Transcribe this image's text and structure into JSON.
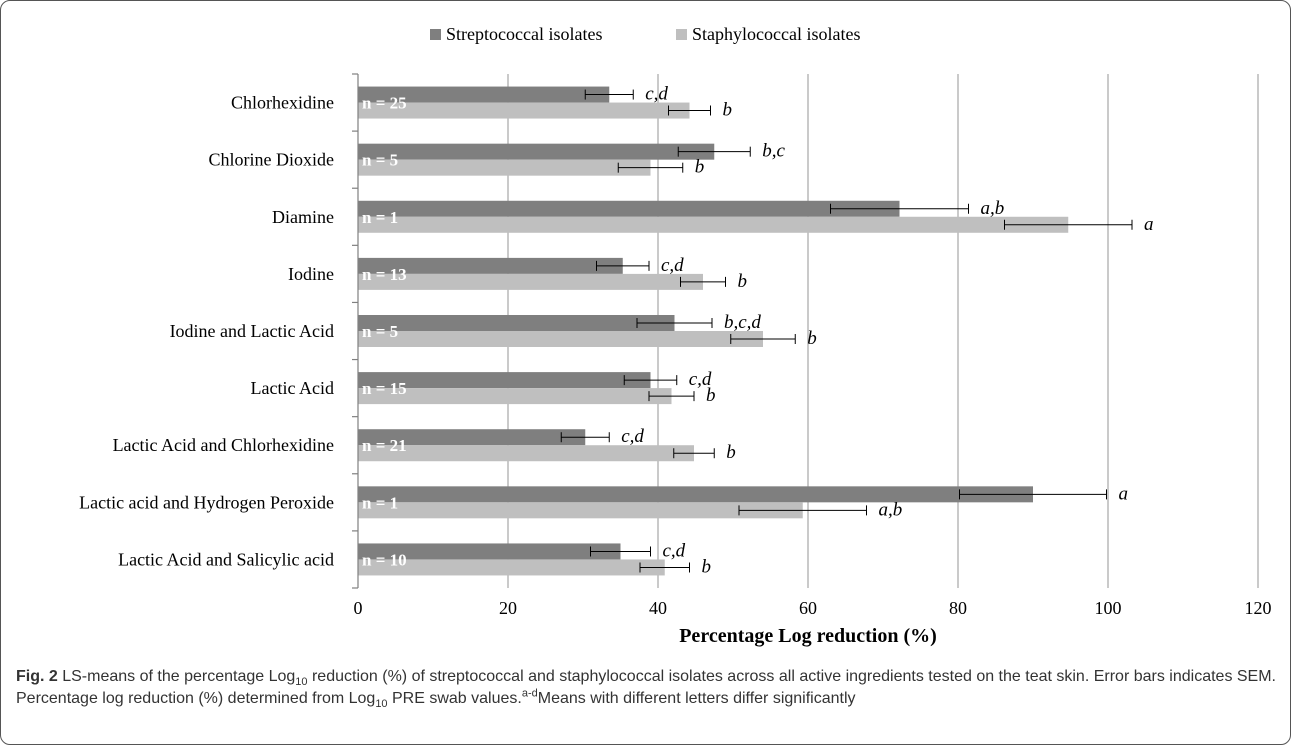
{
  "chart_data": {
    "type": "bar",
    "orientation": "horizontal",
    "categories": [
      "Chlorhexidine",
      "Chlorine Dioxide",
      "Diamine",
      "Iodine",
      "Iodine and Lactic Acid",
      "Lactic Acid",
      "Lactic Acid and Chlorhexidine",
      "Lactic acid and Hydrogen Peroxide",
      "Lactic Acid and Salicylic acid"
    ],
    "n_labels": [
      "n = 25",
      "n = 5",
      "n = 1",
      "n = 13",
      "n = 5",
      "n = 15",
      "n = 21",
      "n = 1",
      "n = 10"
    ],
    "series": [
      {
        "name": "Streptococcal isolates",
        "color": "#7f7f7f",
        "values": [
          33.5,
          47.5,
          72.2,
          35.3,
          42.2,
          39.0,
          30.3,
          90.0,
          35.0
        ],
        "errors": [
          3.2,
          4.8,
          9.2,
          3.5,
          5.0,
          3.5,
          3.2,
          9.8,
          4.0
        ],
        "letters": [
          "c,d",
          "b,c",
          "a,b",
          "c,d",
          "b,c,d",
          "c,d",
          "c,d",
          "a",
          "c,d"
        ]
      },
      {
        "name": "Staphylococcal isolates",
        "color": "#bfbfbf",
        "values": [
          44.2,
          39.0,
          94.7,
          46.0,
          54.0,
          41.8,
          44.8,
          59.3,
          40.9
        ],
        "errors": [
          2.8,
          4.3,
          8.5,
          3.0,
          4.3,
          3.0,
          2.7,
          8.5,
          3.3
        ],
        "letters": [
          "b",
          "b",
          "a",
          "b",
          "b",
          "b",
          "b",
          "a,b",
          "b"
        ]
      }
    ],
    "xlabel": "Percentage Log reduction (%)",
    "ylabel": "",
    "xlim": [
      0,
      120
    ],
    "xticks": [
      0,
      20,
      40,
      60,
      80,
      100,
      120
    ],
    "grid": "vertical",
    "legend": "top-center"
  },
  "caption": {
    "fig_label": "Fig. 2",
    "part1": " LS-means of the percentage Log",
    "sub1": "10",
    "part2": " reduction (%) of streptococcal and staphylococcal isolates across all active ingredients tested on the teat skin. Error bars indicates SEM. Percentage log reduction (%) determined from Log",
    "sub2": "10",
    "part3": " PRE swab values.",
    "sup": "a-d",
    "part4": "Means with different letters differ significantly"
  }
}
